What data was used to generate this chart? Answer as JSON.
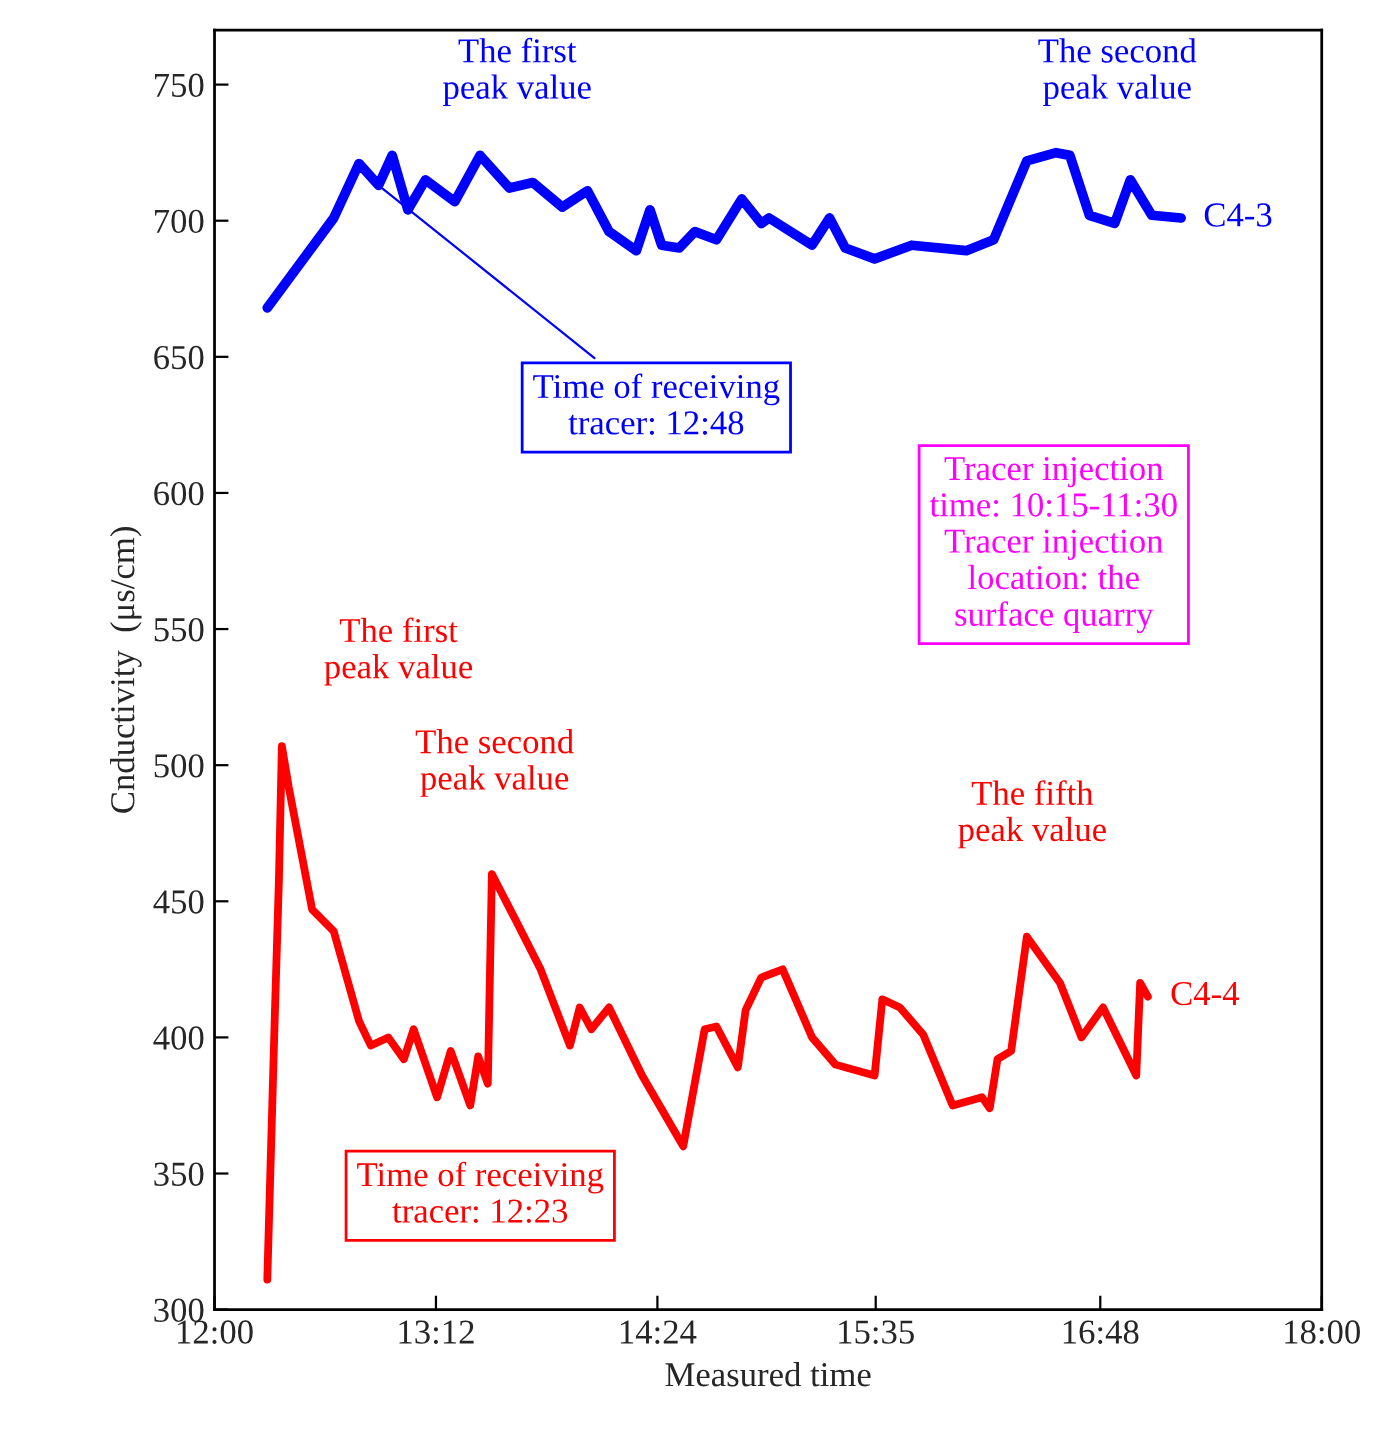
{
  "chart_data": {
    "type": "line",
    "xlabel": "Measured time",
    "ylabel": "Cnductivity  (μs/cm)",
    "xlim": [
      12,
      18
    ],
    "ylim": [
      300,
      770
    ],
    "xticks": [
      {
        "value": 12,
        "label": "12:00"
      },
      {
        "value": 13.2,
        "label": "13:12"
      },
      {
        "value": 14.4,
        "label": "14:24"
      },
      {
        "value": 15.583,
        "label": "15:35"
      },
      {
        "value": 16.8,
        "label": "16:48"
      },
      {
        "value": 18,
        "label": "18:00"
      }
    ],
    "yticks": [
      300,
      350,
      400,
      450,
      500,
      550,
      600,
      650,
      700,
      750
    ],
    "grid": false,
    "legend": false,
    "marker": "none",
    "line_style": "solid",
    "series": [
      {
        "name": "C4-3",
        "color": "#0000ff",
        "x": [
          12.286,
          12.646,
          12.783,
          12.889,
          12.963,
          13.048,
          13.143,
          13.302,
          13.439,
          13.598,
          13.725,
          13.884,
          14.021,
          14.138,
          14.286,
          14.36,
          14.423,
          14.519,
          14.603,
          14.72,
          14.857,
          14.963,
          15.005,
          15.238,
          15.333,
          15.418,
          15.577,
          15.778,
          16.074,
          16.222,
          16.402,
          16.561,
          16.635,
          16.741,
          16.878,
          16.963,
          17.079,
          17.238
        ],
        "values": [
          668,
          701,
          721,
          713,
          724,
          704,
          715,
          707,
          724,
          712,
          714,
          705,
          711,
          696,
          689,
          704,
          691,
          690,
          696,
          693,
          708,
          699,
          701,
          691,
          701,
          690,
          686,
          691,
          689,
          693,
          722,
          725,
          724,
          702,
          699,
          715,
          702,
          701
        ]
      },
      {
        "name": "C4-4",
        "color": "#ff0000",
        "x": [
          12.286,
          12.307,
          12.328,
          12.349,
          12.365,
          12.402,
          12.529,
          12.646,
          12.783,
          12.847,
          12.942,
          13.026,
          13.079,
          13.206,
          13.28,
          13.386,
          13.429,
          13.481,
          13.503,
          13.64,
          13.767,
          13.926,
          13.979,
          14.042,
          14.138,
          14.317,
          14.54,
          14.656,
          14.72,
          14.836,
          14.878,
          14.963,
          15.079,
          15.238,
          15.365,
          15.577,
          15.619,
          15.714,
          15.841,
          16.0,
          16.159,
          16.201,
          16.243,
          16.317,
          16.402,
          16.582,
          16.698,
          16.815,
          16.995,
          17.016,
          17.058
        ],
        "values": [
          311,
          361,
          411,
          458,
          507,
          492,
          447,
          439,
          406,
          397,
          400,
          392,
          403,
          378,
          395,
          375,
          393,
          383,
          460,
          442,
          425,
          397,
          411,
          403,
          411,
          386,
          360,
          403,
          404,
          389,
          410,
          422,
          425,
          400,
          390,
          386,
          414,
          411,
          401,
          375,
          378,
          374,
          392,
          395,
          437,
          420,
          400,
          411,
          386,
          420,
          415
        ]
      }
    ],
    "annotations": [
      {
        "text": "The first\npeak value",
        "x": 12.963,
        "y": 724
      },
      {
        "text": "The second\npeak value",
        "x": 16.561,
        "y": 725
      },
      {
        "text": "Time of receiving\ntracer: 12:48",
        "x": 12.889,
        "y": 713
      },
      "Tracer injection\ntime: 10:15-11:30\nTracer injection\nlocation: the\nsurface quarry",
      {
        "text": "The first\npeak value",
        "x": 12.365,
        "y": 507
      },
      {
        "text": "The second\npeak value",
        "x": 13.503,
        "y": 460
      },
      {
        "text": "The fifth\npeak value",
        "x": 16.402,
        "y": 437
      },
      "Time of receiving\ntracer: 12:23"
    ]
  }
}
